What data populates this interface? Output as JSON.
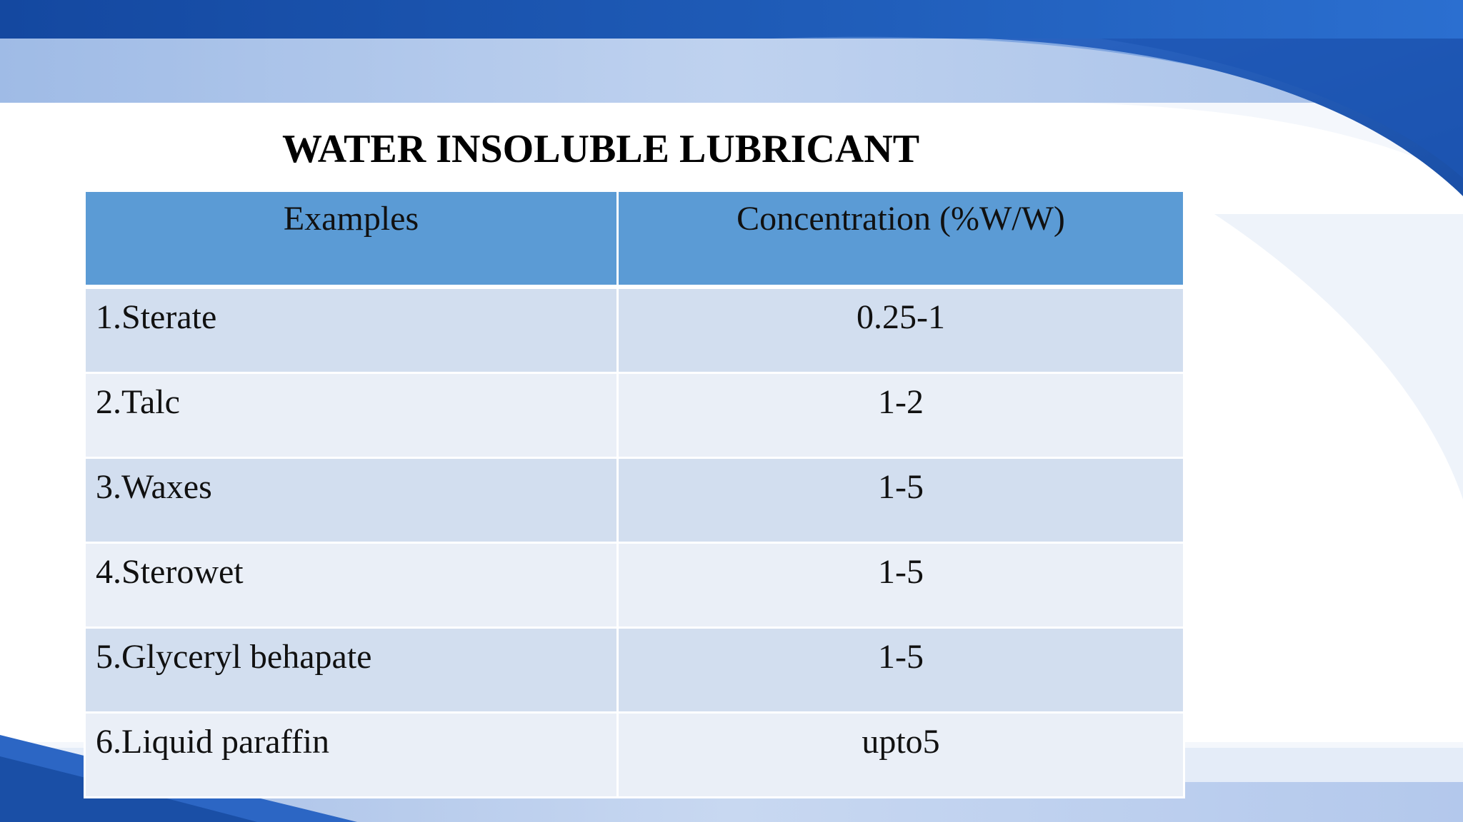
{
  "slide": {
    "title": "WATER INSOLUBLE LUBRICANT"
  },
  "table": {
    "headers": [
      "Examples",
      "Concentration (%W/W)"
    ],
    "rows": [
      {
        "example": "1.Sterate",
        "concentration": "0.25-1"
      },
      {
        "example": "2.Talc",
        "concentration": "1-2"
      },
      {
        "example": "3.Waxes",
        "concentration": "1-5"
      },
      {
        "example": "4.Sterowet",
        "concentration": "1-5"
      },
      {
        "example": "5.Glyceryl behapate",
        "concentration": "1-5"
      },
      {
        "example": "6.Liquid paraffin",
        "concentration": "upto5"
      }
    ]
  },
  "colors": {
    "header_fill": "#5b9bd5",
    "row_odd_fill": "#d2deef",
    "row_even_fill": "#eaeff7",
    "theme_dark_blue": "#1a4fa6",
    "theme_light_blue": "#a9c3e8"
  }
}
